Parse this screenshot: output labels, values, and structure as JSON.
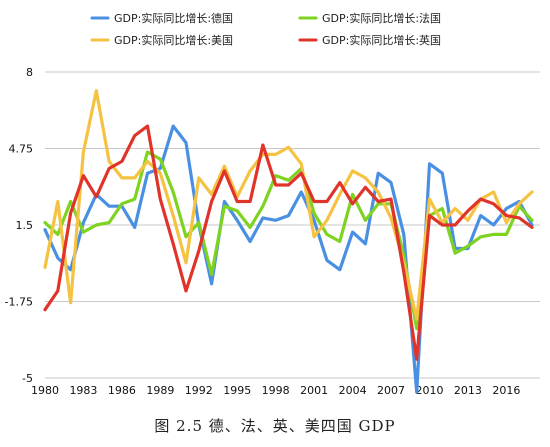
{
  "caption": "图 2.5 德、法、英、美四国 GDP",
  "chart_data": {
    "type": "line",
    "title": "",
    "xlabel": "",
    "ylabel": "",
    "ylim": [
      -5,
      8
    ],
    "y_ticks": [
      "8",
      "4.75",
      "1.5",
      "-1.75",
      "-5"
    ],
    "x_ticks": [
      "1980",
      "1983",
      "1986",
      "1989",
      "1992",
      "1995",
      "1998",
      "2001",
      "2004",
      "2007",
      "2010",
      "2013",
      "2016"
    ],
    "grid": "horizontal",
    "legend_position": "top",
    "x": [
      1980,
      1981,
      1982,
      1983,
      1984,
      1985,
      1986,
      1987,
      1988,
      1989,
      1990,
      1991,
      1992,
      1993,
      1994,
      1995,
      1996,
      1997,
      1998,
      1999,
      2000,
      2001,
      2002,
      2003,
      2004,
      2005,
      2006,
      2007,
      2008,
      2009,
      2010,
      2011,
      2012,
      2013,
      2014,
      2015,
      2016,
      2017,
      2018
    ],
    "series": [
      {
        "name": "GDP:实际同比增长:德国",
        "color": "#4a90e2",
        "values": [
          1.3,
          0.1,
          -0.4,
          1.6,
          2.8,
          2.3,
          2.3,
          1.4,
          3.7,
          3.9,
          5.7,
          5.0,
          1.5,
          -1.0,
          2.5,
          1.7,
          0.8,
          1.8,
          1.7,
          1.9,
          2.9,
          1.7,
          0.0,
          -0.4,
          1.2,
          0.7,
          3.7,
          3.3,
          1.1,
          -5.6,
          4.1,
          3.7,
          0.5,
          0.5,
          1.9,
          1.5,
          2.2,
          2.5,
          1.5
        ]
      },
      {
        "name": "GDP:实际同比增长:法国",
        "color": "#7ed321",
        "values": [
          1.6,
          1.1,
          2.5,
          1.2,
          1.5,
          1.6,
          2.4,
          2.6,
          4.6,
          4.3,
          2.9,
          1.0,
          1.6,
          -0.6,
          2.3,
          2.1,
          1.4,
          2.3,
          3.6,
          3.4,
          3.9,
          2.0,
          1.1,
          0.8,
          2.8,
          1.7,
          2.4,
          2.4,
          0.2,
          -2.9,
          1.9,
          2.2,
          0.3,
          0.6,
          1.0,
          1.1,
          1.1,
          2.3,
          1.7
        ]
      },
      {
        "name": "GDP:实际同比增长:美国",
        "color": "#f5c242",
        "values": [
          -0.3,
          2.5,
          -1.8,
          4.6,
          7.2,
          4.2,
          3.5,
          3.5,
          4.2,
          3.7,
          1.9,
          -0.1,
          3.5,
          2.8,
          4.0,
          2.7,
          3.8,
          4.5,
          4.5,
          4.8,
          4.1,
          1.0,
          1.7,
          2.8,
          3.8,
          3.5,
          2.9,
          1.8,
          -0.1,
          -2.5,
          2.6,
          1.6,
          2.2,
          1.7,
          2.6,
          2.9,
          1.6,
          2.4,
          2.9
        ]
      },
      {
        "name": "GDP:实际同比增长:英国",
        "color": "#e0342b",
        "values": [
          -2.1,
          -1.3,
          2.0,
          3.6,
          2.7,
          3.9,
          4.2,
          5.3,
          5.7,
          2.6,
          0.7,
          -1.3,
          0.4,
          2.5,
          3.8,
          2.5,
          2.5,
          4.9,
          3.2,
          3.2,
          3.7,
          2.5,
          2.5,
          3.3,
          2.4,
          3.1,
          2.5,
          2.6,
          -0.5,
          -4.2,
          1.9,
          1.5,
          1.5,
          2.1,
          2.6,
          2.4,
          1.9,
          1.8,
          1.4
        ]
      }
    ]
  }
}
